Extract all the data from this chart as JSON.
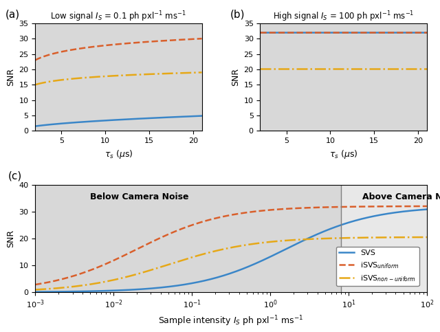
{
  "title_a": "Low signal $I_S$ = 0.1 ph pxl$^{-1}$ ms$^{-1}$",
  "title_b": "High signal $I_S$ = 100 ph pxl$^{-1}$ ms$^{-1}$",
  "xlabel_ab": "$\\tau_s$ ($\\mu$s)",
  "ylabel_ab": "SNR",
  "xlabel_c": "Sample intensity $I_S$ ph pxl$^{-1}$ ms$^{-1}$",
  "ylabel_c": "SNR",
  "label_a": "(a)",
  "label_b": "(b)",
  "label_c": "(c)",
  "color_svs": "#3a86c8",
  "color_isvs_uniform": "#d95f2b",
  "color_isvs_nonuniform": "#e6a817",
  "bg_color": "#d8d8d8",
  "bg_color_above": "#e8e8e8",
  "legend_svs": "SVS",
  "legend_isvs_uniform": "iSVS$_{uniform}$",
  "legend_isvs_nonuniform": "iSVS$_{non-uniform}$",
  "region_label_below": "Below Camera Noise",
  "region_label_above": "Above Camera Noise",
  "transition_x": 8.0,
  "ylim_ab": [
    0,
    35
  ],
  "ylim_c": [
    0,
    40
  ],
  "yticks_ab": [
    0,
    5,
    10,
    15,
    20,
    25,
    30,
    35
  ],
  "yticks_c": [
    0,
    10,
    20,
    30,
    40
  ],
  "xlim_ab": [
    2,
    21
  ],
  "xticks_ab": [
    5,
    10,
    15,
    20
  ]
}
